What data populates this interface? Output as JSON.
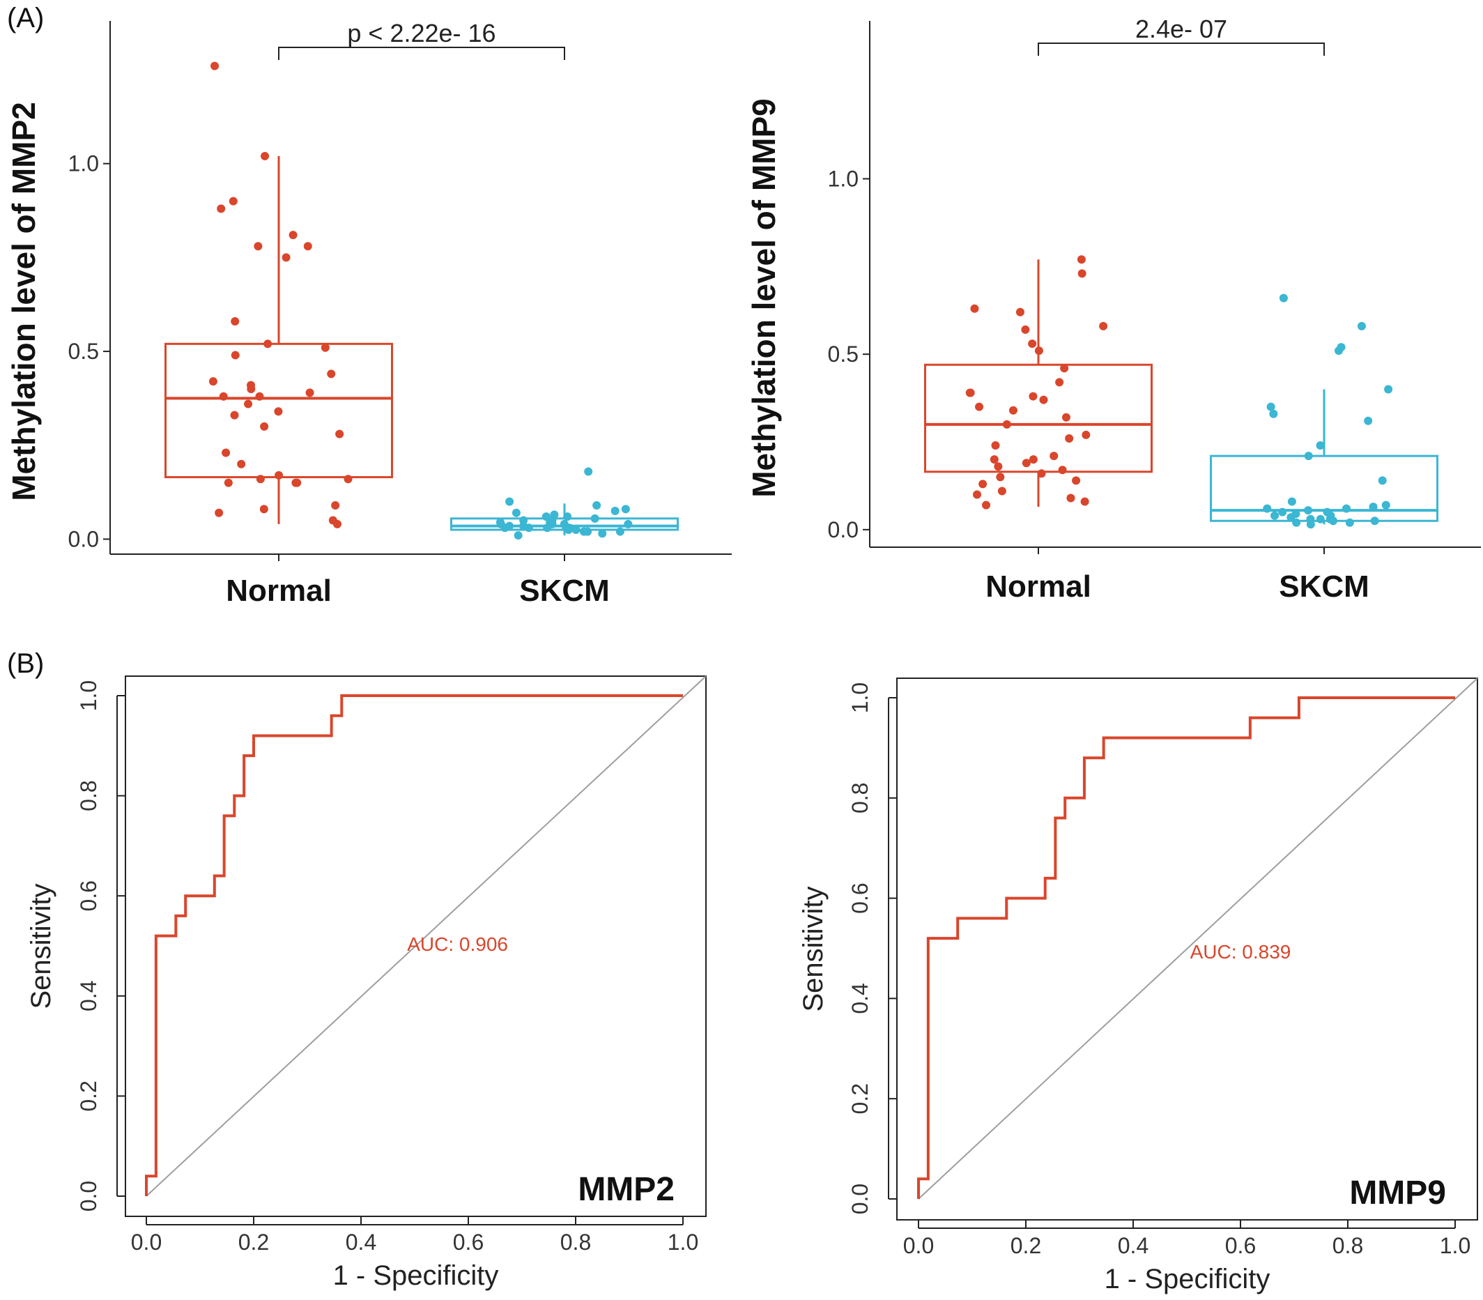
{
  "panel_labels": {
    "a": "(A)",
    "b": "(B)"
  },
  "colors": {
    "normal": "#d9462b",
    "skcm": "#3bb6d3",
    "roc": "#d9462b",
    "diagonal": "#9e9e9e",
    "axis": "#222222"
  },
  "chart_data": [
    {
      "type": "box",
      "panel": "A",
      "ylabel": "Methylation level of MMP2",
      "categories": [
        "Normal",
        "SKCM"
      ],
      "ylim": [
        -0.04,
        1.38
      ],
      "yticks": [
        0.0,
        0.5,
        1.0
      ],
      "ytick_labels": [
        "0.0",
        "0.5",
        "1.0"
      ],
      "significance": "p < 2.22e- 16",
      "boxes": [
        {
          "name": "Normal",
          "color": "#d9462b",
          "q1": 0.165,
          "median": 0.375,
          "q3": 0.52,
          "whisker_low": 0.04,
          "whisker_high": 1.02,
          "points": [
            0.05,
            0.04,
            0.07,
            0.08,
            0.09,
            0.15,
            0.16,
            0.17,
            0.15,
            0.2,
            0.23,
            0.28,
            0.3,
            0.33,
            0.34,
            0.36,
            0.38,
            0.39,
            0.4,
            0.41,
            0.42,
            0.44,
            0.49,
            0.51,
            0.52,
            0.58,
            0.75,
            0.78,
            0.78,
            0.81,
            0.88,
            0.9,
            1.02,
            1.26,
            0.16,
            0.38,
            0.15
          ]
        },
        {
          "name": "SKCM",
          "color": "#3bb6d3",
          "q1": 0.025,
          "median": 0.035,
          "q3": 0.055,
          "whisker_low": 0.01,
          "whisker_high": 0.095,
          "points": [
            0.01,
            0.015,
            0.02,
            0.02,
            0.025,
            0.025,
            0.03,
            0.03,
            0.03,
            0.035,
            0.035,
            0.04,
            0.04,
            0.04,
            0.045,
            0.05,
            0.05,
            0.055,
            0.06,
            0.06,
            0.065,
            0.07,
            0.075,
            0.08,
            0.09,
            0.1,
            0.18,
            0.02,
            0.03,
            0.045,
            0.03,
            0.04
          ]
        }
      ]
    },
    {
      "type": "box",
      "panel": "A",
      "ylabel": "Methylation level of MMP9",
      "categories": [
        "Normal",
        "SKCM"
      ],
      "ylim": [
        -0.05,
        1.45
      ],
      "yticks": [
        0.0,
        0.5,
        1.0
      ],
      "ytick_labels": [
        "0.0",
        "0.5",
        "1.0"
      ],
      "significance": "2.4e- 07",
      "boxes": [
        {
          "name": "Normal",
          "color": "#d9462b",
          "q1": 0.165,
          "median": 0.3,
          "q3": 0.47,
          "whisker_low": 0.065,
          "whisker_high": 0.77,
          "points": [
            0.07,
            0.08,
            0.09,
            0.1,
            0.11,
            0.13,
            0.14,
            0.15,
            0.16,
            0.17,
            0.18,
            0.19,
            0.2,
            0.21,
            0.24,
            0.26,
            0.27,
            0.3,
            0.32,
            0.34,
            0.35,
            0.37,
            0.38,
            0.39,
            0.42,
            0.46,
            0.51,
            0.53,
            0.57,
            0.58,
            0.62,
            0.63,
            0.73,
            0.77,
            0.39,
            0.2
          ]
        },
        {
          "name": "SKCM",
          "color": "#3bb6d3",
          "q1": 0.025,
          "median": 0.055,
          "q3": 0.21,
          "whisker_low": 0.015,
          "whisker_high": 0.4,
          "points": [
            0.015,
            0.02,
            0.02,
            0.025,
            0.025,
            0.03,
            0.03,
            0.035,
            0.04,
            0.04,
            0.045,
            0.05,
            0.05,
            0.055,
            0.06,
            0.065,
            0.07,
            0.08,
            0.14,
            0.21,
            0.24,
            0.31,
            0.33,
            0.35,
            0.4,
            0.51,
            0.52,
            0.58,
            0.66,
            0.03,
            0.06
          ]
        }
      ]
    },
    {
      "type": "line",
      "panel": "B",
      "gene": "MMP2",
      "xlabel": "1 -  Specificity",
      "ylabel": "Sensitivity",
      "xlim": [
        0,
        1
      ],
      "ylim": [
        0,
        1
      ],
      "ticks": [
        0.0,
        0.2,
        0.4,
        0.6,
        0.8,
        1.0
      ],
      "tick_labels": [
        "0.0",
        "0.2",
        "0.4",
        "0.6",
        "0.8",
        "1.0"
      ],
      "auc_label": "AUC: 0.906",
      "auc_pos": [
        0.58,
        0.49
      ],
      "series": [
        {
          "x": [
            0.0,
            0.0,
            0.018,
            0.018,
            0.055,
            0.055,
            0.073,
            0.073,
            0.127,
            0.127,
            0.145,
            0.145,
            0.164,
            0.164,
            0.182,
            0.182,
            0.2,
            0.2,
            0.345,
            0.345,
            0.364,
            0.364,
            1.0
          ],
          "y": [
            0.0,
            0.04,
            0.04,
            0.52,
            0.52,
            0.56,
            0.56,
            0.6,
            0.6,
            0.64,
            0.64,
            0.76,
            0.76,
            0.8,
            0.8,
            0.88,
            0.88,
            0.92,
            0.92,
            0.96,
            0.96,
            1.0,
            1.0
          ]
        }
      ]
    },
    {
      "type": "line",
      "panel": "B",
      "gene": "MMP9",
      "xlabel": "1 -  Specificity",
      "ylabel": "Sensitivity",
      "xlim": [
        0,
        1
      ],
      "ylim": [
        0,
        1
      ],
      "ticks": [
        0.0,
        0.2,
        0.4,
        0.6,
        0.8,
        1.0
      ],
      "tick_labels": [
        "0.0",
        "0.2",
        "0.4",
        "0.6",
        "0.8",
        "1.0"
      ],
      "auc_label": "AUC: 0.839",
      "auc_pos": [
        0.6,
        0.48
      ],
      "series": [
        {
          "x": [
            0.0,
            0.0,
            0.018,
            0.018,
            0.073,
            0.073,
            0.164,
            0.164,
            0.236,
            0.236,
            0.255,
            0.255,
            0.273,
            0.273,
            0.309,
            0.309,
            0.345,
            0.345,
            0.618,
            0.618,
            0.709,
            0.709,
            1.0
          ],
          "y": [
            0.0,
            0.04,
            0.04,
            0.52,
            0.52,
            0.56,
            0.56,
            0.6,
            0.6,
            0.64,
            0.64,
            0.76,
            0.76,
            0.8,
            0.8,
            0.88,
            0.88,
            0.92,
            0.92,
            0.96,
            0.96,
            1.0,
            1.0
          ]
        }
      ]
    }
  ]
}
